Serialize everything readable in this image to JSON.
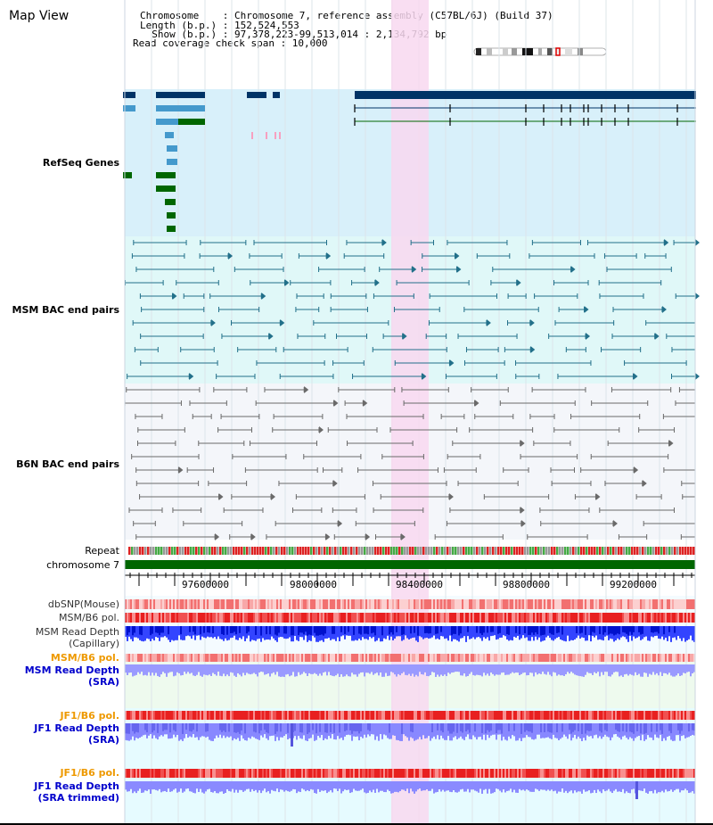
{
  "panel_title": "Map View",
  "info": {
    "line1": "Chromosome    : Chromosome 7, reference assembly (C57BL/6J) (Build 37)",
    "line2": "Length (b.p.) : 152,524,553",
    "line3": "  Show (b.p.) : 97,378,223-99,513,014 : 2,134,792 bp",
    "line4": "Read coverage check span : 10,000"
  },
  "tracks": {
    "refseq": "RefSeq Genes",
    "msm_bac": "MSM BAC end pairs",
    "b6n_bac": "B6N BAC end pairs",
    "repeat": "Repeat",
    "chromosome": "chromosome 7",
    "dbsnp": "dbSNP(Mouse)",
    "msm_b6_pol": "MSM/B6 pol.",
    "msm_depth_cap_1": "MSM Read Depth",
    "msm_depth_cap_2": "(Capillary)",
    "msm_b6_pol_2": "MSM/B6 pol.",
    "msm_depth_sra_1": "MSM Read Depth",
    "msm_depth_sra_2": "(SRA)",
    "jf1_b6_pol": "JF1/B6 pol.",
    "jf1_depth_sra_1": "JF1 Read Depth",
    "jf1_depth_sra_2": "(SRA)",
    "jf1_b6_pol_2": "JF1/B6 pol.",
    "jf1_depth_trim_1": "JF1 Read Depth",
    "jf1_depth_trim_2": "(SRA trimmed)"
  },
  "axis": {
    "ticks": [
      "97600000",
      "98000000",
      "98400000",
      "98800000",
      "99200000"
    ]
  },
  "colors": {
    "highlight": "#f8d8f0",
    "refseq_bg": "#d8f0fa",
    "msm_bg": "#e0f8f8",
    "b6n_bg": "#f4f6fa",
    "refseq_label": "#0000aa",
    "msm_label": "#007799",
    "b6n_label": "#555566",
    "orange_label": "#ee9900",
    "blue_label": "#0000cc",
    "gene_dark": "#003366",
    "gene_mid": "#4499cc",
    "gene_green": "#006600",
    "chromosome": "#006600"
  }
}
